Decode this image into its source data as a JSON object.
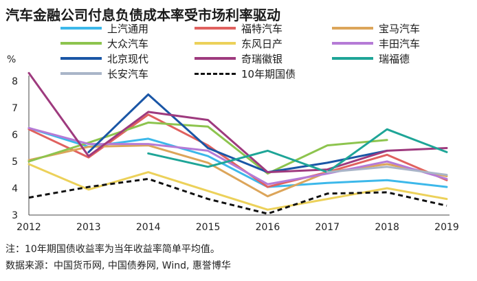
{
  "title": "汽车金融公司付息负债成本率受市场利率驱动",
  "unit": "%",
  "footnote": "注：10年期国债收益率为当年收益率简单平均值。",
  "source": "数据来源：中国货币网, 中国债券网, Wind, 惠誉博华",
  "chart_data": {
    "type": "line",
    "title": "汽车金融公司付息负债成本率受市场利率驱动",
    "xlabel": "",
    "ylabel": "%",
    "x": [
      2012,
      2013,
      2014,
      2015,
      2016,
      2017,
      2018,
      2019
    ],
    "ylim": [
      3,
      8
    ],
    "yticks": [
      3,
      4,
      5,
      6,
      7,
      8
    ],
    "grid": false,
    "legend_position": "top",
    "series": [
      {
        "name": "上汽通用",
        "color": "#3cb8ea",
        "dashed": false,
        "values": [
          6.25,
          5.55,
          5.85,
          5.2,
          4.05,
          4.2,
          4.3,
          4.05
        ]
      },
      {
        "name": "福特汽车",
        "color": "#e0615f",
        "dashed": false,
        "values": [
          6.2,
          5.15,
          6.75,
          5.6,
          4.05,
          4.6,
          5.25,
          4.3
        ]
      },
      {
        "name": "宝马汽车",
        "color": "#dca55a",
        "dashed": false,
        "values": [
          5.05,
          5.55,
          5.6,
          4.95,
          3.7,
          4.6,
          4.9,
          4.45
        ]
      },
      {
        "name": "大众汽车",
        "color": "#8dc44e",
        "dashed": false,
        "values": [
          5.0,
          5.7,
          6.45,
          6.3,
          4.55,
          5.6,
          5.8,
          null
        ]
      },
      {
        "name": "东风日产",
        "color": "#ecd15a",
        "dashed": false,
        "values": [
          4.9,
          3.95,
          4.6,
          3.9,
          3.2,
          3.6,
          4.0,
          3.6
        ]
      },
      {
        "name": "丰田汽车",
        "color": "#b57bd6",
        "dashed": false,
        "values": [
          6.25,
          5.65,
          5.65,
          5.4,
          4.15,
          4.55,
          5.0,
          4.35
        ]
      },
      {
        "name": "北京现代",
        "color": "#1a56a6",
        "dashed": false,
        "values": [
          null,
          5.35,
          7.5,
          5.5,
          4.6,
          4.95,
          5.4,
          null
        ]
      },
      {
        "name": "奇瑞徽银",
        "color": "#9e3a7e",
        "dashed": false,
        "values": [
          8.3,
          5.2,
          6.85,
          6.55,
          4.6,
          4.7,
          5.4,
          5.5
        ]
      },
      {
        "name": "瑞福德",
        "color": "#1ea597",
        "dashed": false,
        "values": [
          null,
          null,
          5.3,
          4.8,
          5.4,
          4.6,
          6.2,
          5.35
        ]
      },
      {
        "name": "长安汽车",
        "color": "#a9b5c8",
        "dashed": false,
        "values": [
          null,
          null,
          null,
          null,
          null,
          4.6,
          4.8,
          4.5
        ]
      },
      {
        "name": "10年期国债",
        "color": "#111111",
        "dashed": true,
        "values": [
          3.65,
          4.05,
          4.35,
          3.6,
          3.05,
          3.8,
          3.85,
          3.35
        ]
      }
    ]
  }
}
